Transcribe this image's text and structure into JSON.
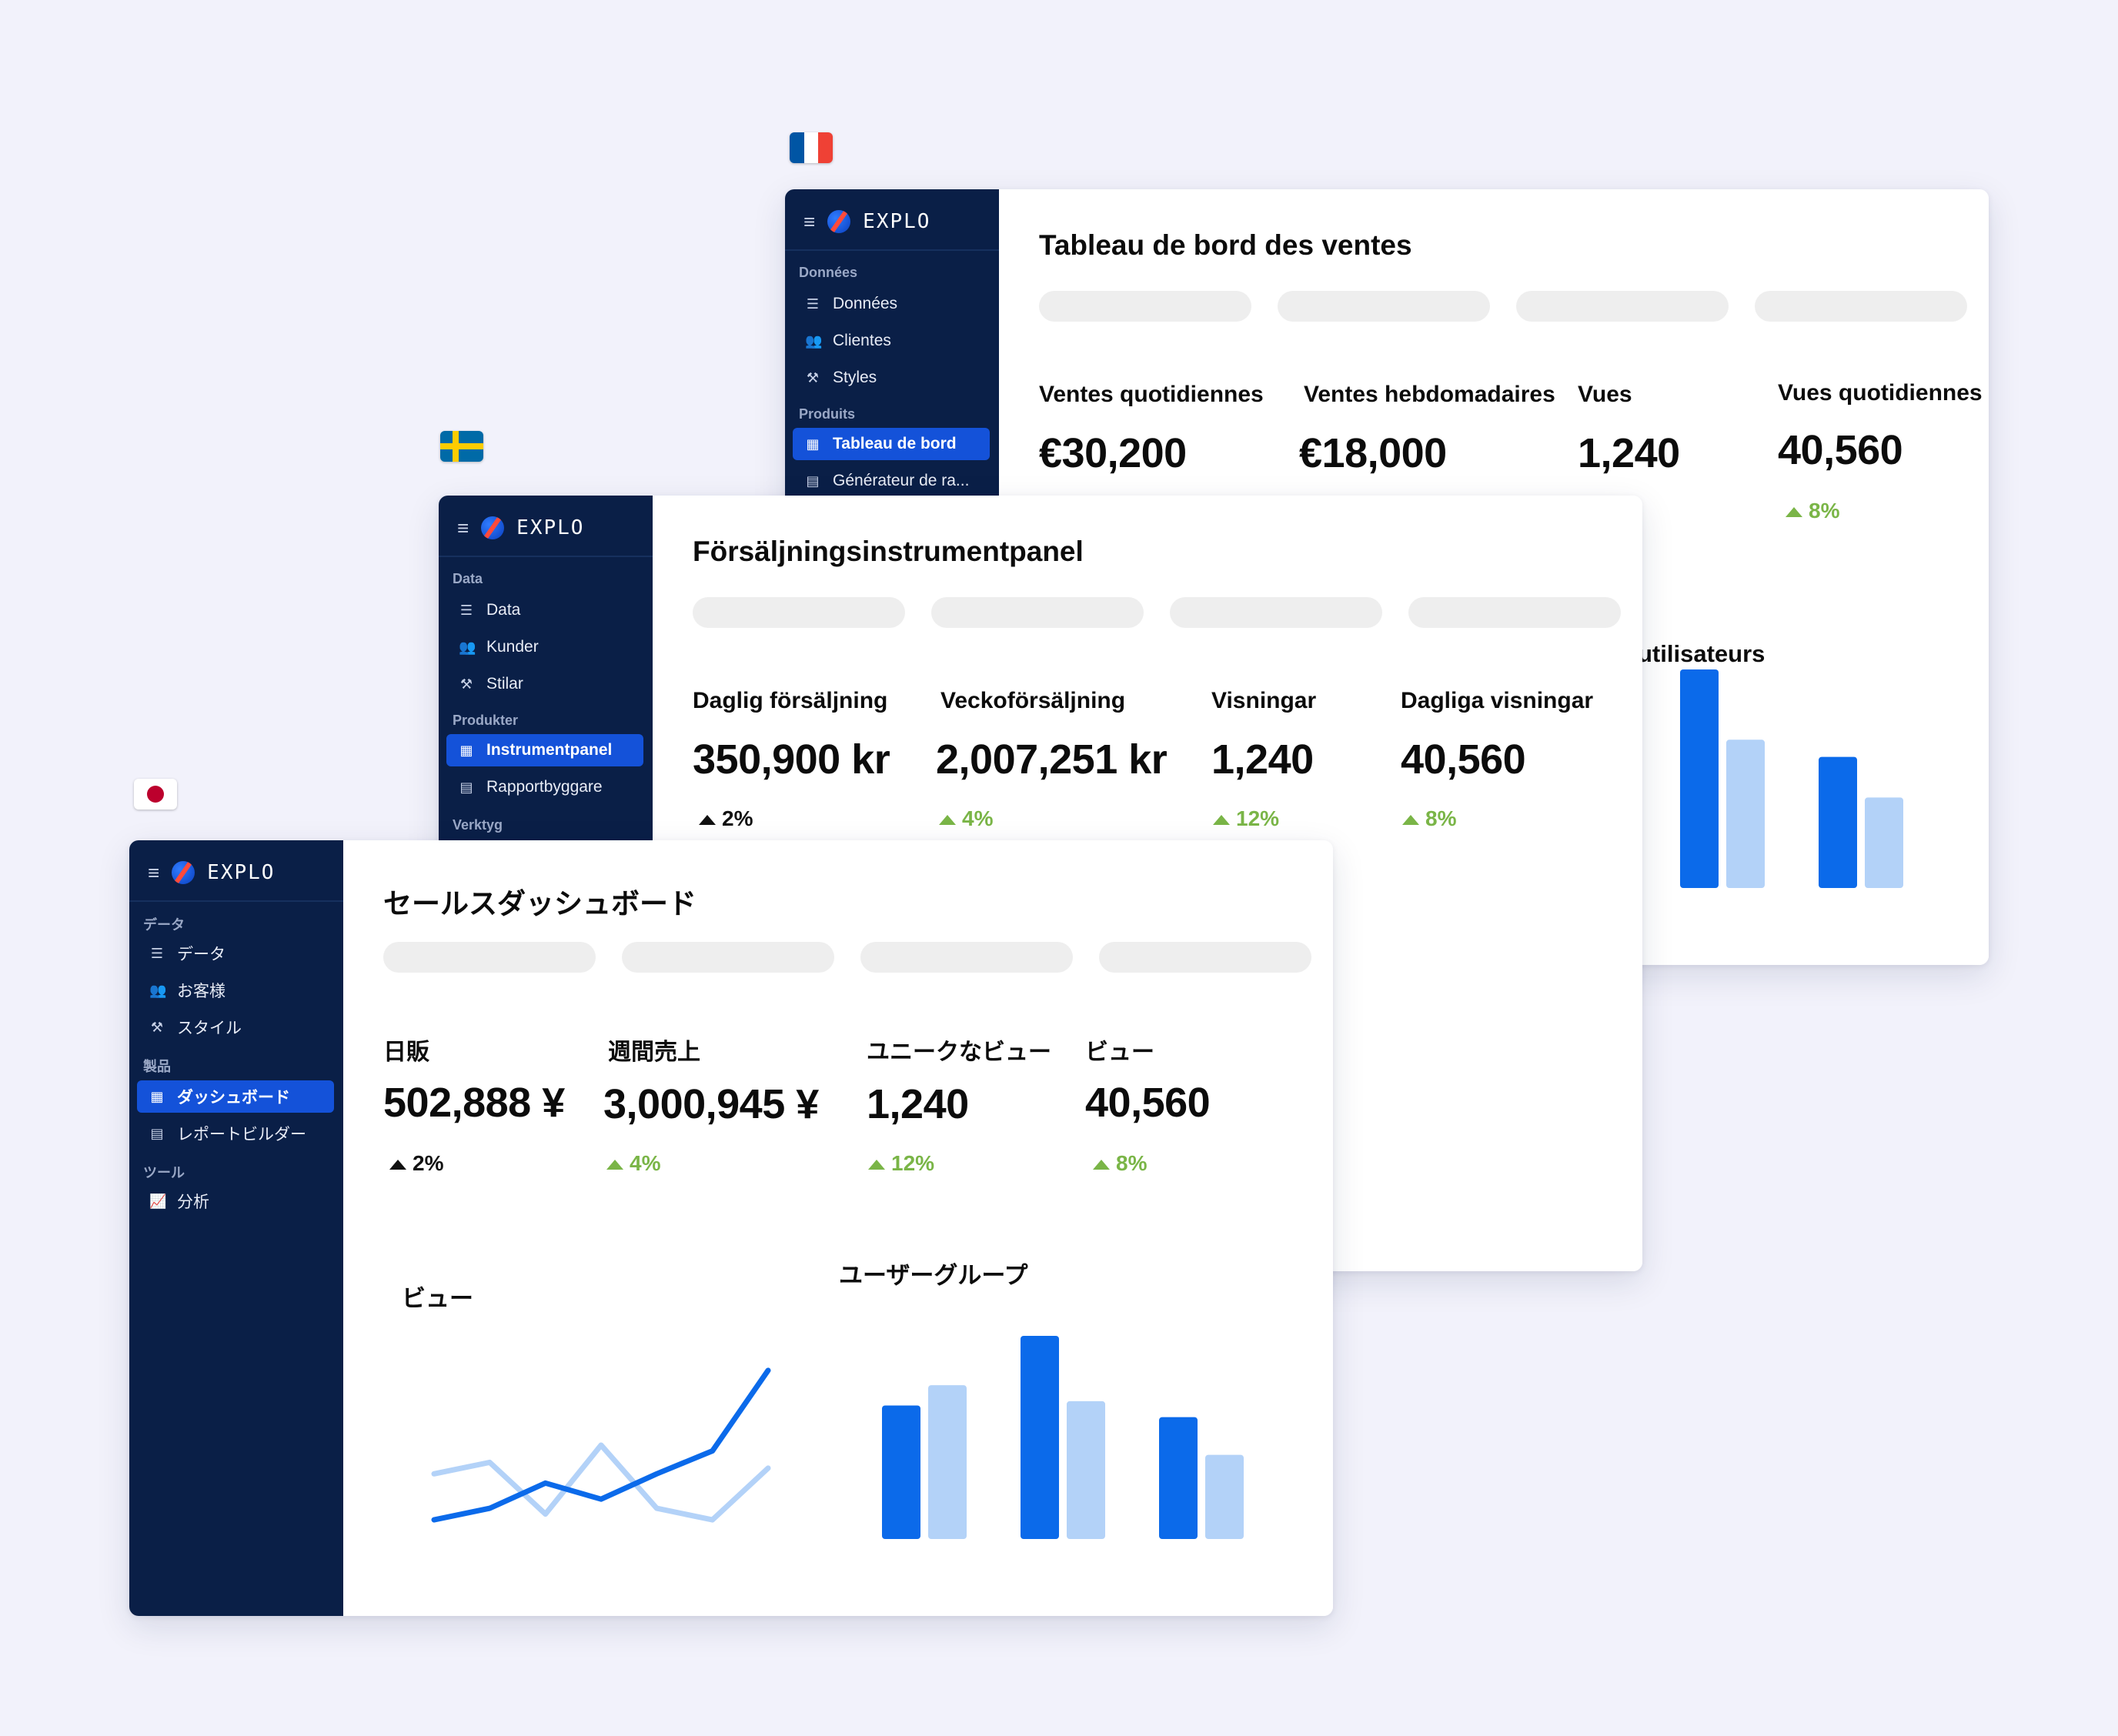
{
  "flags": {
    "fr": "fr-flag",
    "se": "se-flag",
    "jp": "jp-flag"
  },
  "colors": {
    "sidebar": "#0a1f47",
    "active": "#1452d9",
    "bar_dark": "#0b6aea",
    "bar_light": "#b3d2f8",
    "positive": "#7ab547"
  },
  "fr": {
    "logo": "EXPLO",
    "sections": {
      "data": "Données",
      "products": "Produits"
    },
    "nav": {
      "data": "Données",
      "clients": "Clientes",
      "styles": "Styles",
      "dashboard": "Tableau de bord",
      "report": "Générateur de ra..."
    },
    "title": "Tableau de bord des ventes",
    "metrics": [
      {
        "label": "Ventes quotidiennes",
        "value": "€30,200"
      },
      {
        "label": "Ventes hebdomadaires",
        "value": "€18,000"
      },
      {
        "label": "Vues",
        "value": "1,240"
      },
      {
        "label": "Vues quotidiennes",
        "value": "40,560",
        "delta": "8%"
      }
    ],
    "chart_title": "utilisateurs"
  },
  "se": {
    "logo": "EXPLO",
    "sections": {
      "data": "Data",
      "products": "Produkter",
      "tools": "Verktyg"
    },
    "nav": {
      "data": "Data",
      "customers": "Kunder",
      "styles": "Stilar",
      "dashboard": "Instrumentpanel",
      "report": "Rapportbyggare"
    },
    "title": "Försäljningsinstrumentpanel",
    "metrics": [
      {
        "label": "Daglig försäljning",
        "value": "350,900 kr",
        "delta": "2%"
      },
      {
        "label": "Veckoförsäljning",
        "value": "2,007,251 kr",
        "delta": "4%"
      },
      {
        "label": "Visningar",
        "value": "1,240",
        "delta": "12%"
      },
      {
        "label": "Dagliga visningar",
        "value": "40,560",
        "delta": "8%"
      }
    ]
  },
  "jp": {
    "logo": "EXPLO",
    "sections": {
      "data": "データ",
      "products": "製品",
      "tools": "ツール"
    },
    "nav": {
      "data": "データ",
      "customers": "お客様",
      "styles": "スタイル",
      "dashboard": "ダッシュボード",
      "report": "レポートビルダー",
      "analysis": "分析"
    },
    "title": "セールスダッシュボード",
    "metrics": [
      {
        "label": "日販",
        "value": "502,888 ¥",
        "delta": "2%"
      },
      {
        "label": "週間売上",
        "value": "3,000,945 ¥",
        "delta": "4%"
      },
      {
        "label": "ユニークなビュー",
        "value": "1,240",
        "delta": "12%"
      },
      {
        "label": "ビュー",
        "value": "40,560",
        "delta": "8%"
      }
    ],
    "line_title": "ビュー",
    "bar_title": "ユーザーグループ"
  },
  "chart_data": [
    {
      "type": "line",
      "title": "ビュー",
      "x": [
        0,
        1,
        2,
        3,
        4,
        5,
        6
      ],
      "series": [
        {
          "values": [
            10,
            20,
            42,
            28,
            50,
            70,
            140
          ]
        },
        {
          "values": [
            50,
            60,
            15,
            75,
            20,
            10,
            55
          ]
        }
      ],
      "ylim": [
        0,
        150
      ]
    },
    {
      "type": "bar",
      "title": "ユーザーグループ",
      "categories": [
        "",
        "",
        ""
      ],
      "series": [
        {
          "values": [
            92,
            140,
            84
          ]
        },
        {
          "values": [
            106,
            95,
            58
          ]
        }
      ],
      "ylim": [
        0,
        140
      ]
    },
    {
      "type": "bar",
      "title": "utilisateurs",
      "categories": [
        "",
        ""
      ],
      "series": [
        {
          "values": [
            140,
            84
          ]
        },
        {
          "values": [
            95,
            58
          ]
        }
      ],
      "ylim": [
        0,
        140
      ]
    },
    {
      "type": "bar",
      "categories": [
        "",
        ""
      ],
      "series": [
        {
          "values": [
            140,
            84
          ]
        },
        {
          "values": [
            95,
            58
          ]
        }
      ],
      "ylim": [
        0,
        140
      ]
    }
  ]
}
